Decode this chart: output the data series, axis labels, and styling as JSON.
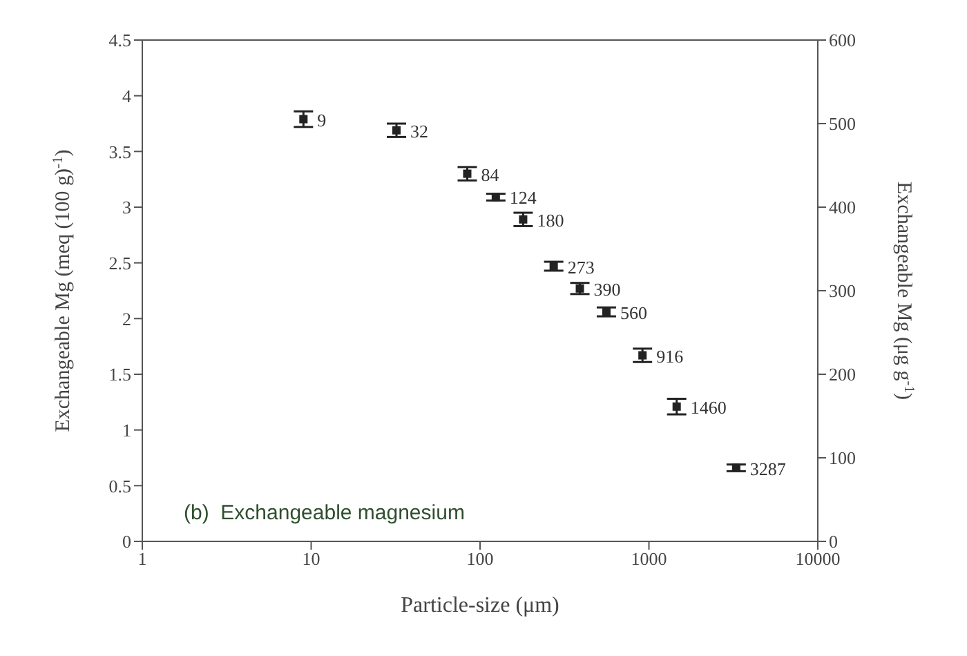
{
  "chart_data": {
    "type": "scatter",
    "x": [
      9,
      32,
      84,
      124,
      180,
      273,
      390,
      560,
      916,
      1460,
      3287
    ],
    "series": [
      {
        "color": "#222222",
        "values": [
          3.79,
          3.69,
          3.3,
          3.09,
          2.89,
          2.47,
          2.27,
          2.06,
          1.67,
          1.21,
          0.66
        ],
        "errors": [
          0.07,
          0.06,
          0.06,
          0.03,
          0.06,
          0.04,
          0.05,
          0.04,
          0.06,
          0.07,
          0.03
        ]
      }
    ],
    "marker": "square",
    "log": "x",
    "xlim": [
      1,
      10000
    ],
    "xticks": [
      1,
      10,
      100,
      1000,
      10000
    ],
    "ylim": [
      0,
      4.5
    ],
    "yticks": [
      0,
      0.5,
      1,
      1.5,
      2,
      2.5,
      3,
      3.5,
      4,
      4.5
    ],
    "y2lim": [
      0,
      600
    ],
    "y2ticks": [
      0,
      100,
      200,
      300,
      400,
      500,
      600
    ],
    "xlabel": "Particle-size  (μm)",
    "ylabel": "Exchangeable Mg  (meq (100 g)$^{-1}$)",
    "y2label": "Exchangeable Mg  (μg g$^{-1}$)",
    "annotations": [
      "(b)  Exchangeable magnesium",
      {
        "text": "9",
        "x": 9,
        "y": 3.79
      },
      {
        "text": "32",
        "x": 32,
        "y": 3.69
      },
      {
        "text": "84",
        "x": 84,
        "y": 3.3
      },
      {
        "text": "124",
        "x": 124,
        "y": 3.09
      },
      {
        "text": "180",
        "x": 180,
        "y": 2.89
      },
      {
        "text": "273",
        "x": 273,
        "y": 2.47
      },
      {
        "text": "390",
        "x": 390,
        "y": 2.27
      },
      {
        "text": "560",
        "x": 560,
        "y": 2.06
      },
      {
        "text": "916",
        "x": 916,
        "y": 1.67
      },
      {
        "text": "1460",
        "x": 1460,
        "y": 1.21
      },
      {
        "text": "3287",
        "x": 3287,
        "y": 0.66
      }
    ],
    "grid": false,
    "legend": false
  }
}
